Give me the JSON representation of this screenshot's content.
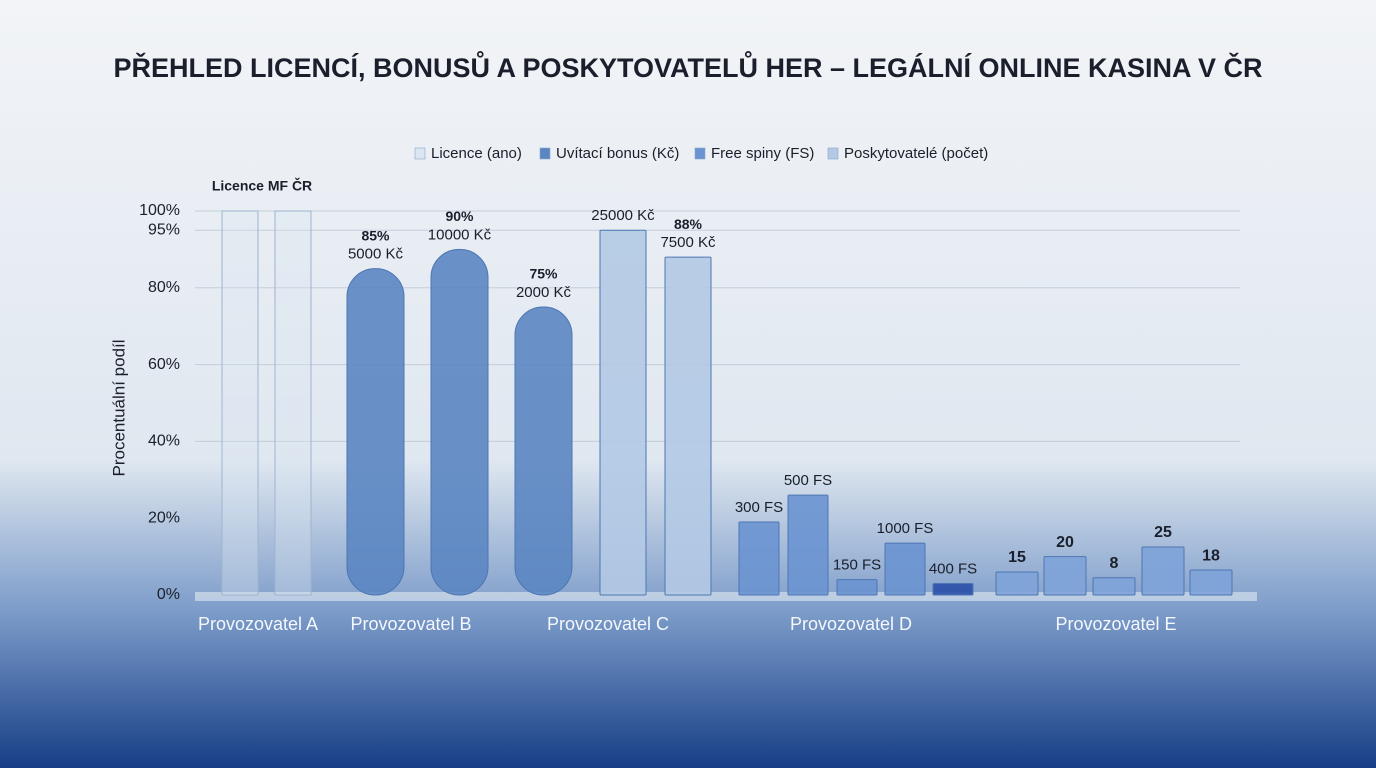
{
  "chart_data": {
    "type": "bar",
    "title": "PŘEHLED LICENCÍ, BONUSŮ A POSKYTOVATELŮ HER – LEGÁLNÍ ONLINE KASINA V ČR",
    "y_label": "Procentuální podíl",
    "annotation": "Licence MF ČR",
    "ylim": [
      0,
      100
    ],
    "yticks": [
      {
        "value": 0,
        "label": "0%"
      },
      {
        "value": 20,
        "label": "20%"
      },
      {
        "value": 40,
        "label": "40%"
      },
      {
        "value": 60,
        "label": "60%"
      },
      {
        "value": 80,
        "label": "80%"
      },
      {
        "value": 95,
        "label": "95%"
      },
      {
        "value": 100,
        "label": "100%"
      }
    ],
    "grid": true,
    "series": [
      {
        "name": "Licence (ano)",
        "color": "#dbe6f2"
      },
      {
        "name": "Uvítací bonus (Kč)",
        "color": "#5b86c2"
      },
      {
        "name": "Free spiny (FS)",
        "color": "#6a93d0"
      },
      {
        "name": "Poskytovatelé (počet)",
        "color": "#b3c9e4"
      }
    ],
    "groups": [
      {
        "category": "Provozovatel A",
        "series": 0,
        "color": "#dbe6f2",
        "bars": [
          {
            "value": 100
          },
          {
            "value": 100
          }
        ]
      },
      {
        "category": "Provozovatel B",
        "series": 1,
        "color": "#5b86c2",
        "bars": [
          {
            "value": 85,
            "value_label": "85%",
            "note": "5000 Kč"
          },
          {
            "value": 90,
            "value_label": "90%",
            "note": "10000 Kč"
          },
          {
            "value": 75,
            "value_label": "75%",
            "note": "2000 Kč"
          }
        ]
      },
      {
        "category": "Provozovatel C",
        "series": 1,
        "color": "#b3c9e4",
        "bars": [
          {
            "value": 95,
            "note": "25000 Kč"
          },
          {
            "value": 88,
            "value_label": "88%",
            "note": "7500 Kč"
          }
        ]
      },
      {
        "category": "Provozovatel D",
        "series": 2,
        "color": "#6a93d0",
        "bars": [
          {
            "value": 19,
            "note": "300 FS"
          },
          {
            "value": 26,
            "note": "500 FS"
          },
          {
            "value": 4,
            "note": "150 FS"
          },
          {
            "value": 13.5,
            "note": "1000 FS"
          },
          {
            "value": 3,
            "note": "400 FS",
            "color": "#2a4fa8"
          }
        ]
      },
      {
        "category": "Provozovatel E",
        "series": 3,
        "color": "#7ea3d8",
        "bars": [
          {
            "value": 6,
            "note": "15"
          },
          {
            "value": 10,
            "note": "20"
          },
          {
            "value": 4.5,
            "note": "8"
          },
          {
            "value": 12.5,
            "note": "25"
          },
          {
            "value": 6.5,
            "note": "18"
          }
        ]
      }
    ]
  }
}
